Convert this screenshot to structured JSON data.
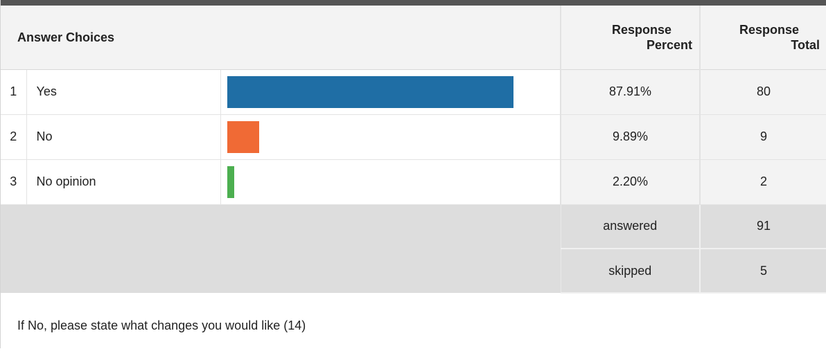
{
  "header": {
    "answer_choices": "Answer Choices",
    "response_percent_line1": "Response",
    "response_percent_line2": "Percent",
    "response_total_line1": "Response",
    "response_total_line2": "Total"
  },
  "rows": [
    {
      "number": "1",
      "label": "Yes",
      "percent": "87.91%",
      "total": "80",
      "bar_fraction": 0.8791,
      "bar_color": "#1f6ea5"
    },
    {
      "number": "2",
      "label": "No",
      "percent": "9.89%",
      "total": "9",
      "bar_fraction": 0.0989,
      "bar_color": "#f06a35"
    },
    {
      "number": "3",
      "label": "No opinion",
      "percent": "2.20%",
      "total": "2",
      "bar_fraction": 0.022,
      "bar_color": "#4caf50"
    }
  ],
  "summary": {
    "answered_label": "answered",
    "answered_value": "91",
    "skipped_label": "skipped",
    "skipped_value": "5"
  },
  "comment": "If No, please state what changes you would like (14)"
}
